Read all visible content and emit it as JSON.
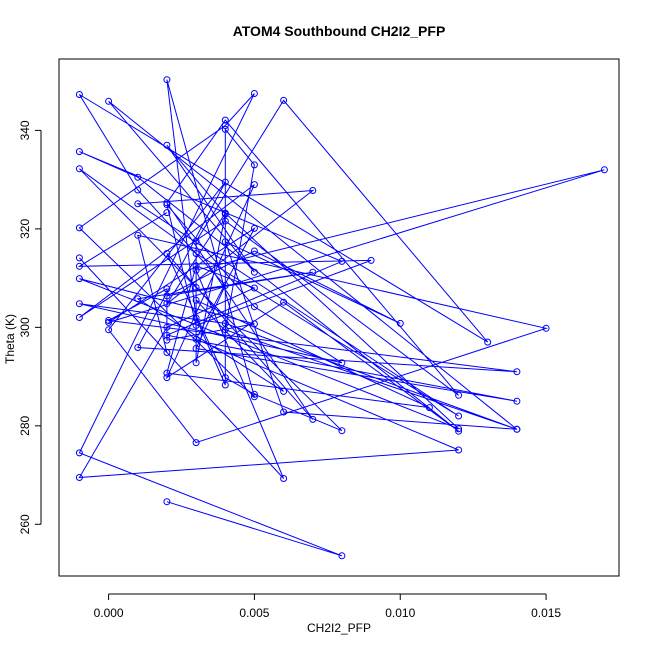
{
  "chart_data": {
    "type": "line",
    "title": "ATOM4 Southbound CH2I2_PFP",
    "xlabel": "CH2I2_PFP",
    "ylabel": "Theta (K)",
    "xlim": [
      -0.0017,
      0.0175
    ],
    "ylim": [
      249.5,
      354.5
    ],
    "x_ticks": [
      0.0,
      0.005,
      0.01,
      0.015
    ],
    "x_tick_labels": [
      "0.000",
      "0.005",
      "0.010",
      "0.015"
    ],
    "y_ticks": [
      260,
      280,
      300,
      320,
      340
    ],
    "y_tick_labels": [
      "260",
      "280",
      "300",
      "320",
      "340"
    ],
    "grid": false,
    "legend": "none",
    "color": "#0000ff",
    "x": [
      0.002,
      0.008,
      -0.001,
      0.005,
      0.004,
      -0.001,
      0.005,
      0.002,
      0.003,
      0.004,
      0.004,
      0.005,
      0.004,
      0.014,
      0.0,
      0.005,
      0.002,
      0.004,
      0.003,
      0.003,
      0.006,
      0.013,
      -0.001,
      0.001,
      0.004,
      0.003,
      0.014,
      0.002,
      0.008,
      -0.001,
      0.001,
      0.012,
      0.006,
      0.002,
      0.005,
      -0.001,
      0.004,
      0.012,
      0.004,
      0.002,
      0.007,
      0.002,
      0.004,
      0.005,
      0.008,
      0.003,
      -0.001,
      0.003,
      0.012,
      0.001,
      0.007,
      0.002,
      0.004,
      0.012,
      -0.001,
      0.005,
      0.002,
      0.002,
      0.0,
      0.014,
      0.001,
      0.004,
      0.0,
      0.003,
      0.015,
      0.001,
      0.002,
      -0.001,
      0.006,
      0.003,
      0.017,
      0.0,
      0.005,
      0.003,
      0.012,
      -0.001,
      0.002,
      0.005,
      0.003,
      0.002,
      0.011,
      0.003,
      0.006,
      0.001,
      0.007,
      0.002,
      0.005,
      0.01,
      0.004,
      0.006,
      0.014,
      0.004,
      -0.001,
      0.008,
      0.005,
      0.002,
      0.003,
      0.009,
      -0.001,
      0.002
    ],
    "y": [
      264.6,
      253.6,
      274.5,
      347.5,
      341.0,
      320.2,
      285.9,
      350.3,
      301.9,
      288.3,
      340.2,
      333.0,
      299.5,
      279.3,
      345.9,
      311.2,
      337.0,
      323.0,
      292.8,
      317.5,
      346.1,
      297.0,
      347.3,
      327.9,
      308.5,
      295.7,
      285.0,
      298.4,
      313.4,
      335.7,
      330.5,
      278.9,
      305.1,
      289.8,
      329.0,
      302.0,
      321.6,
      286.2,
      342.1,
      325.3,
      281.3,
      315.0,
      289.8,
      286.4,
      279.0,
      308.1,
      332.2,
      315.0,
      282.0,
      325.1,
      327.8,
      304.8,
      323.2,
      279.4,
      309.9,
      300.7,
      297.4,
      307.8,
      301.4,
      291.0,
      295.9,
      329.5,
      299.5,
      276.6,
      299.8,
      318.7,
      294.9,
      314.1,
      269.3,
      311.6,
      332.0,
      301.0,
      320.1,
      297.6,
      275.1,
      269.5,
      300.0,
      308.0,
      312.5,
      290.7,
      283.7,
      305.5,
      287.0,
      305.8,
      311.2,
      306.4,
      315.5,
      300.8,
      317.4,
      282.8,
      279.3,
      300.8,
      304.8,
      292.8,
      304.2,
      324.9,
      300.4,
      313.6,
      312.4,
      323.3
    ]
  }
}
